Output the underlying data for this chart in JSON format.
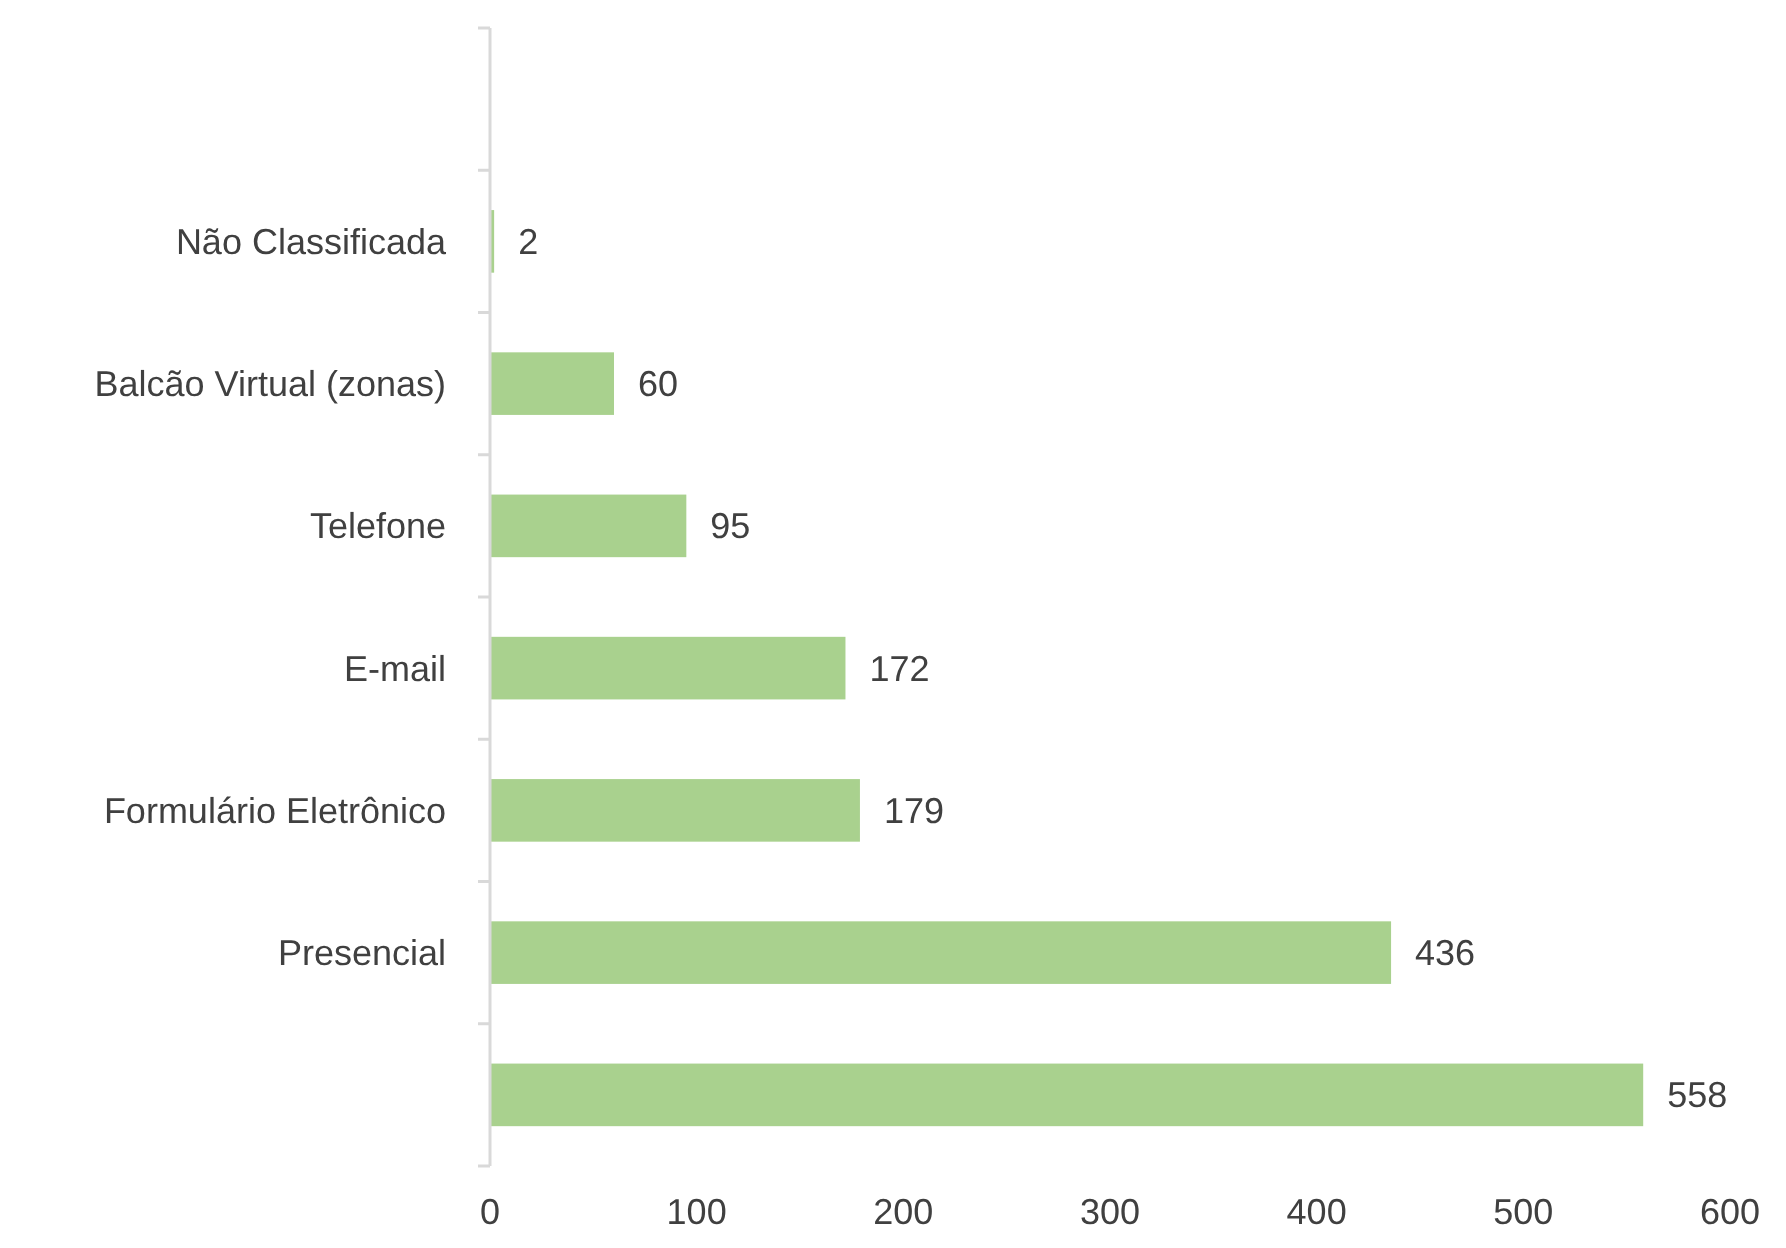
{
  "chart_data": {
    "type": "bar",
    "orientation": "horizontal",
    "categories": [
      null,
      "Não Classificada",
      "Balcão Virtual (zonas)",
      "Telefone",
      "E-mail",
      "Formulário Eletrônico",
      "Presencial",
      null
    ],
    "values": [
      null,
      2,
      60,
      95,
      172,
      179,
      436,
      558
    ],
    "color": "#a9d18e",
    "xlim": [
      0,
      600
    ],
    "xticks": [
      0,
      100,
      200,
      300,
      400,
      500,
      600
    ],
    "data_labels": true,
    "grid": false
  }
}
